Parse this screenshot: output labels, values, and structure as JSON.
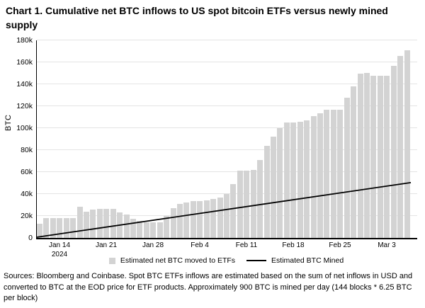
{
  "title": "Chart 1. Cumulative net BTC inflows to US spot bitcoin ETFs versus newly mined supply",
  "footer": "Sources: Bloomberg and Coinbase. Spot BTC ETFs inflows are estimated based on the sum of net inflows in USD and converted to BTC at the EOD price for ETF products. Approximately 900 BTC is mined per day (144 blocks * 6.25 BTC per block)",
  "legend": [
    {
      "label": "Estimated net BTC moved to ETFs",
      "swatch": "bar",
      "color": "#d3d3d3"
    },
    {
      "label": "Estimated BTC Mined",
      "swatch": "line",
      "color": "#000000"
    }
  ],
  "colors": {
    "bar": "#d3d3d3",
    "line": "#000000",
    "gridline": "#e4e4e4",
    "axis": "#000000"
  },
  "chart_data": {
    "type": "bar",
    "title": "Chart 1. Cumulative net BTC inflows to US spot bitcoin ETFs versus newly mined supply",
    "xlabel": "",
    "ylabel": "BTC",
    "ylim": [
      0,
      180000
    ],
    "grid": true,
    "legend_position": "bottom",
    "yticks": [
      {
        "value": 0,
        "label": "0"
      },
      {
        "value": 20000,
        "label": "20k"
      },
      {
        "value": 40000,
        "label": "40k"
      },
      {
        "value": 60000,
        "label": "60k"
      },
      {
        "value": 80000,
        "label": "80k"
      },
      {
        "value": 100000,
        "label": "100k"
      },
      {
        "value": 120000,
        "label": "120k"
      },
      {
        "value": 140000,
        "label": "140k"
      },
      {
        "value": 160000,
        "label": "160k"
      },
      {
        "value": 180000,
        "label": "180k"
      }
    ],
    "x_ticks": [
      {
        "index": 3,
        "label": "Jan 14",
        "sublabel": "2024"
      },
      {
        "index": 10,
        "label": "Jan 21"
      },
      {
        "index": 17,
        "label": "Jan 28"
      },
      {
        "index": 24,
        "label": "Feb 4"
      },
      {
        "index": 31,
        "label": "Feb 11"
      },
      {
        "index": 38,
        "label": "Feb 18"
      },
      {
        "index": 45,
        "label": "Feb 25"
      },
      {
        "index": 52,
        "label": "Mar 3"
      }
    ],
    "categories": [
      "Jan 11",
      "Jan 12",
      "Jan 13",
      "Jan 14",
      "Jan 15",
      "Jan 16",
      "Jan 17",
      "Jan 18",
      "Jan 19",
      "Jan 20",
      "Jan 21",
      "Jan 22",
      "Jan 23",
      "Jan 24",
      "Jan 25",
      "Jan 26",
      "Jan 27",
      "Jan 28",
      "Jan 29",
      "Jan 30",
      "Jan 31",
      "Feb 1",
      "Feb 2",
      "Feb 3",
      "Feb 4",
      "Feb 5",
      "Feb 6",
      "Feb 7",
      "Feb 8",
      "Feb 9",
      "Feb 10",
      "Feb 11",
      "Feb 12",
      "Feb 13",
      "Feb 14",
      "Feb 15",
      "Feb 16",
      "Feb 17",
      "Feb 18",
      "Feb 19",
      "Feb 20",
      "Feb 21",
      "Feb 22",
      "Feb 23",
      "Feb 24",
      "Feb 25",
      "Feb 26",
      "Feb 27",
      "Feb 28",
      "Feb 29",
      "Mar 1",
      "Mar 2",
      "Mar 3",
      "Mar 4",
      "Mar 5",
      "Mar 6"
    ],
    "series": [
      {
        "name": "Estimated net BTC moved to ETFs",
        "type": "bar",
        "color": "#d3d3d3",
        "values": [
          13000,
          18000,
          18000,
          18000,
          18000,
          17800,
          28500,
          24000,
          26000,
          26500,
          26500,
          26500,
          23500,
          21000,
          17500,
          15500,
          14000,
          14000,
          14000,
          20000,
          27000,
          31000,
          32500,
          33500,
          33500,
          34000,
          35500,
          37000,
          40000,
          49000,
          61000,
          61000,
          62000,
          71000,
          84000,
          92000,
          100000,
          105000,
          105000,
          106000,
          107000,
          111000,
          113500,
          116500,
          117000,
          117000,
          128000,
          138000,
          150000,
          150500,
          148000,
          148000,
          148000,
          156500,
          166000,
          171000
        ]
      },
      {
        "name": "Estimated BTC Mined",
        "type": "line",
        "color": "#000000",
        "btc_mined_per_day": 900,
        "start_value": 0,
        "end_value": 50400
      }
    ]
  }
}
